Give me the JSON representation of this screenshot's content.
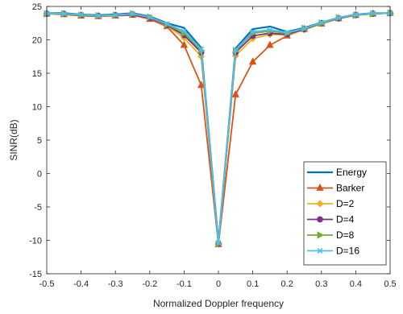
{
  "chart_data": {
    "type": "line",
    "title": "",
    "xlabel": "Normalized Doppler frequency",
    "ylabel": "SINR(dB)",
    "xlim": [
      -0.5,
      0.5
    ],
    "ylim": [
      -15,
      25
    ],
    "xticks": [
      -0.5,
      -0.4,
      -0.3,
      -0.2,
      -0.1,
      0,
      0.1,
      0.2,
      0.3,
      0.4,
      0.5
    ],
    "yticks": [
      -15,
      -10,
      -5,
      0,
      5,
      10,
      15,
      20,
      25
    ],
    "grid": false,
    "legend_position": "bottom-right",
    "x": [
      -0.5,
      -0.45,
      -0.4,
      -0.35,
      -0.3,
      -0.25,
      -0.2,
      -0.15,
      -0.1,
      -0.05,
      0,
      0.05,
      0.1,
      0.15,
      0.2,
      0.25,
      0.3,
      0.35,
      0.4,
      0.45,
      0.5
    ],
    "series": [
      {
        "name": "Energy",
        "color": "#0072BD",
        "marker": "none",
        "values": [
          24.0,
          24.0,
          23.8,
          23.7,
          23.8,
          24.0,
          23.5,
          22.5,
          21.8,
          18.8,
          -10.3,
          18.7,
          21.6,
          22.0,
          21.2,
          21.8,
          22.6,
          23.3,
          23.8,
          24.0,
          24.0
        ]
      },
      {
        "name": "Barker",
        "color": "#D95319",
        "marker": "triangle",
        "values": [
          23.9,
          23.8,
          23.6,
          23.5,
          23.6,
          23.7,
          23.1,
          22.0,
          19.2,
          13.2,
          -10.6,
          11.8,
          16.7,
          19.2,
          20.6,
          21.6,
          22.4,
          23.2,
          23.7,
          23.9,
          24.0
        ]
      },
      {
        "name": "D=2",
        "color": "#EDB120",
        "marker": "diamond",
        "values": [
          23.9,
          23.9,
          23.7,
          23.6,
          23.7,
          23.8,
          23.3,
          22.1,
          20.3,
          17.5,
          -10.6,
          17.6,
          20.2,
          20.8,
          20.7,
          21.5,
          22.4,
          23.2,
          23.7,
          23.9,
          24.0
        ]
      },
      {
        "name": "D=4",
        "color": "#7E2F8E",
        "marker": "circle",
        "values": [
          23.9,
          23.9,
          23.7,
          23.6,
          23.7,
          23.8,
          23.3,
          22.2,
          20.7,
          18.1,
          -10.5,
          18.1,
          20.6,
          21.0,
          20.8,
          21.6,
          22.5,
          23.2,
          23.7,
          23.9,
          24.0
        ]
      },
      {
        "name": "D=8",
        "color": "#77AC30",
        "marker": "triangle-right",
        "values": [
          23.9,
          23.9,
          23.7,
          23.6,
          23.7,
          23.9,
          23.4,
          22.3,
          21.0,
          18.4,
          -10.5,
          18.4,
          21.0,
          21.3,
          21.0,
          21.7,
          22.5,
          23.3,
          23.7,
          23.9,
          24.0
        ]
      },
      {
        "name": "D=16",
        "color": "#4DBEEE",
        "marker": "x",
        "values": [
          24.0,
          23.9,
          23.8,
          23.6,
          23.7,
          23.9,
          23.4,
          22.4,
          21.3,
          18.6,
          -10.4,
          18.5,
          21.2,
          21.5,
          21.1,
          21.7,
          22.6,
          23.3,
          23.8,
          24.0,
          24.0
        ]
      }
    ]
  }
}
